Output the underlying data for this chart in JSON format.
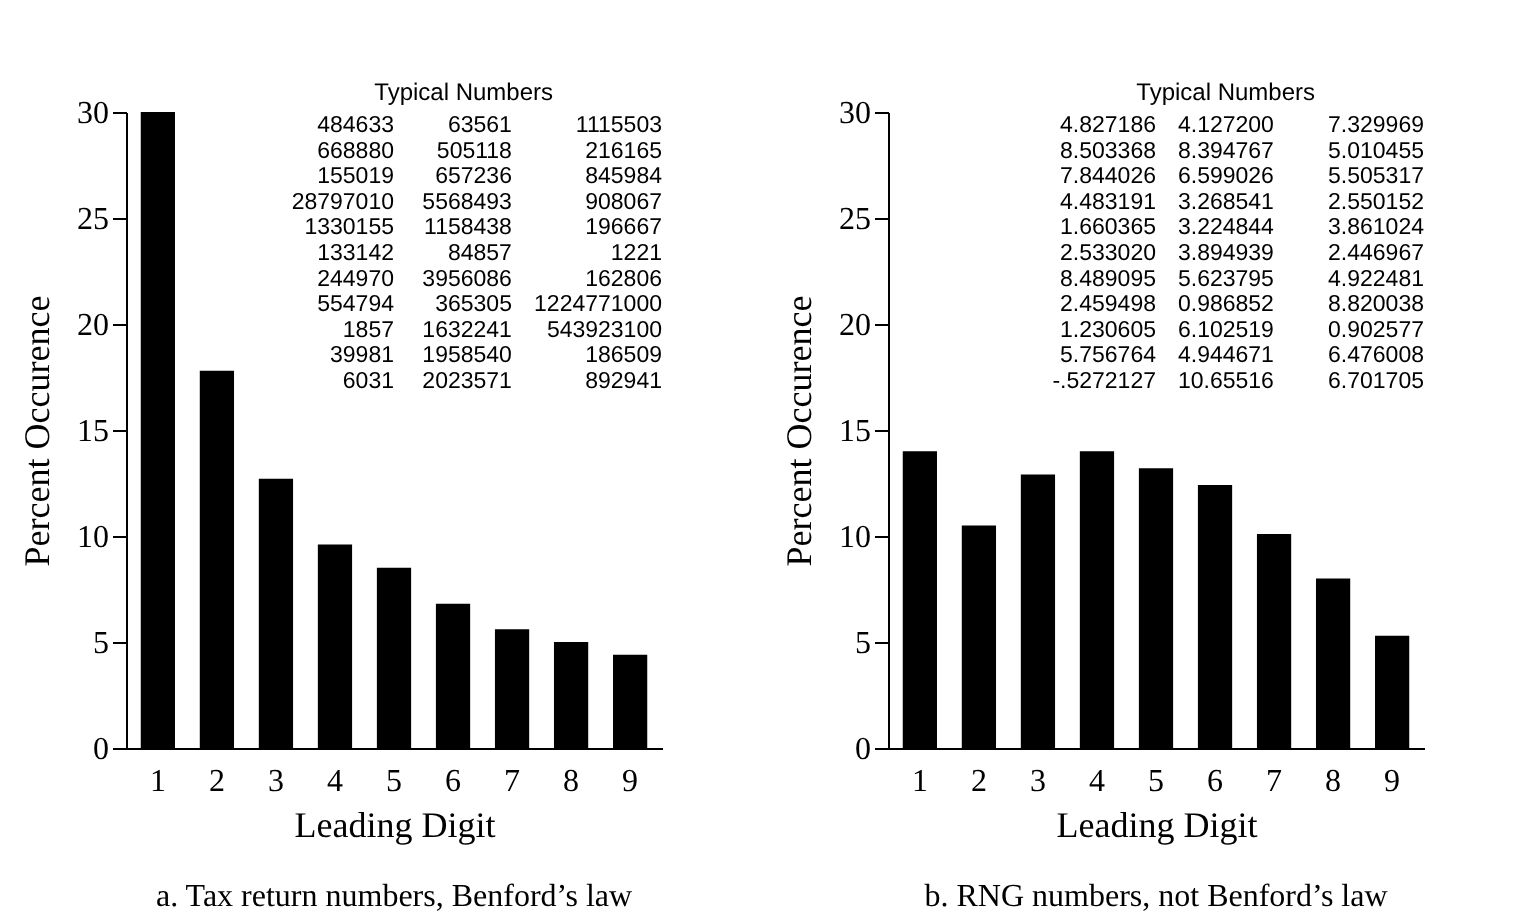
{
  "chart_data": [
    {
      "type": "bar",
      "title": "a. Tax return numbers, Benford’s law",
      "xlabel": "Leading Digit",
      "ylabel": "Percent Occurence",
      "categories": [
        "1",
        "2",
        "3",
        "4",
        "5",
        "6",
        "7",
        "8",
        "9"
      ],
      "values": [
        30,
        17.8,
        12.7,
        9.6,
        8.5,
        6.8,
        5.6,
        5.0,
        4.4
      ],
      "color": "#000000",
      "ylim": [
        0,
        30
      ],
      "yticks": [
        0,
        5,
        10,
        15,
        20,
        25,
        30
      ],
      "grid": false,
      "annotations": [
        "Typical Numbers",
        "484633",
        "63561",
        "1115503",
        "668880",
        "505118",
        "216165",
        "155019",
        "657236",
        "845984",
        "28797010",
        "5568493",
        "908067",
        "1330155",
        "1158438",
        "196667",
        "133142",
        "84857",
        "1221",
        "244970",
        "3956086",
        "162806",
        "554794",
        "365305",
        "1224771000",
        "1857",
        "1632241",
        "543923100",
        "39981",
        "1958540",
        "186509",
        "6031",
        "2023571",
        "892941"
      ]
    },
    {
      "type": "bar",
      "title": "b. RNG numbers, not Benford’s law",
      "xlabel": "Leading Digit",
      "ylabel": "Percent Occurence",
      "categories": [
        "1",
        "2",
        "3",
        "4",
        "5",
        "6",
        "7",
        "8",
        "9"
      ],
      "values": [
        14.0,
        10.5,
        12.9,
        14.0,
        13.2,
        12.4,
        10.1,
        8.0,
        5.3
      ],
      "color": "#000000",
      "ylim": [
        0,
        30
      ],
      "yticks": [
        0,
        5,
        10,
        15,
        20,
        25,
        30
      ],
      "grid": false,
      "annotations": [
        "Typical Numbers",
        "4.827186",
        "4.127200",
        "7.329969",
        "8.503368",
        "8.394767",
        "5.010455",
        "7.844026",
        "6.599026",
        "5.505317",
        "4.483191",
        "3.268541",
        "2.550152",
        "1.660365",
        "3.224844",
        "3.861024",
        "2.533020",
        "3.894939",
        "2.446967",
        "8.489095",
        "5.623795",
        "4.922481",
        "2.459498",
        "0.986852",
        "8.820038",
        "1.230605",
        "6.102519",
        "0.902577",
        "5.756764",
        "4.944671",
        "6.476008",
        "-.5272127",
        "10.65516",
        "6.701705"
      ]
    }
  ]
}
